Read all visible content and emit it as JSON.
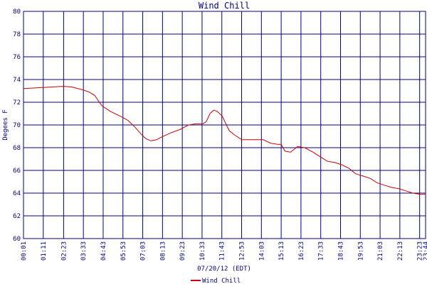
{
  "chart_data": {
    "type": "line",
    "title": "Wind Chill",
    "x_label": "07/20/12 (EDT)",
    "y_label": "Degees F",
    "grid": true,
    "legend": "bottom",
    "xlim": [
      1,
      1424
    ],
    "xticks": [
      {
        "value": 1,
        "label": "00:01"
      },
      {
        "value": 71,
        "label": "01:11"
      },
      {
        "value": 143,
        "label": "02:23"
      },
      {
        "value": 213,
        "label": "03:33"
      },
      {
        "value": 283,
        "label": "04:43"
      },
      {
        "value": 353,
        "label": "05:53"
      },
      {
        "value": 423,
        "label": "07:03"
      },
      {
        "value": 493,
        "label": "08:13"
      },
      {
        "value": 563,
        "label": "09:23"
      },
      {
        "value": 633,
        "label": "10:33"
      },
      {
        "value": 703,
        "label": "11:43"
      },
      {
        "value": 773,
        "label": "12:53"
      },
      {
        "value": 843,
        "label": "14:03"
      },
      {
        "value": 913,
        "label": "15:13"
      },
      {
        "value": 983,
        "label": "16:23"
      },
      {
        "value": 1053,
        "label": "17:33"
      },
      {
        "value": 1123,
        "label": "18:43"
      },
      {
        "value": 1193,
        "label": "19:53"
      },
      {
        "value": 1263,
        "label": "21:03"
      },
      {
        "value": 1333,
        "label": "22:13"
      },
      {
        "value": 1403,
        "label": "23:23"
      },
      {
        "value": 1424,
        "label": "23:44"
      }
    ],
    "ylim": [
      60,
      80
    ],
    "yticks": [
      60,
      62,
      64,
      66,
      68,
      70,
      72,
      74,
      76,
      78,
      80
    ],
    "x": [
      1,
      69,
      140,
      170,
      210,
      233,
      253,
      278,
      308,
      349,
      371,
      396,
      417,
      434,
      452,
      472,
      487,
      522,
      555,
      585,
      611,
      636,
      648,
      661,
      674,
      686,
      704,
      719,
      729,
      749,
      774,
      800,
      825,
      850,
      875,
      900,
      913,
      926,
      946,
      971,
      996,
      1026,
      1051,
      1077,
      1102,
      1127,
      1152,
      1177,
      1203,
      1228,
      1253,
      1278,
      1303,
      1328,
      1354,
      1379,
      1404,
      1424
    ],
    "series": [
      {
        "name": "Wind Chill",
        "color": "#cc0000",
        "values": [
          73.2,
          73.3,
          73.4,
          73.35,
          73.1,
          72.9,
          72.6,
          71.7,
          71.2,
          70.7,
          70.4,
          69.8,
          69.2,
          68.8,
          68.6,
          68.7,
          68.9,
          69.3,
          69.6,
          70.0,
          70.1,
          70.1,
          70.3,
          71.0,
          71.3,
          71.2,
          70.8,
          70.0,
          69.5,
          69.1,
          68.7,
          68.7,
          68.7,
          68.7,
          68.4,
          68.3,
          68.3,
          67.7,
          67.6,
          68.1,
          68.0,
          67.6,
          67.2,
          66.8,
          66.7,
          66.5,
          66.2,
          65.7,
          65.5,
          65.3,
          64.9,
          64.7,
          64.5,
          64.4,
          64.2,
          64.0,
          63.9,
          63.9
        ]
      }
    ]
  }
}
